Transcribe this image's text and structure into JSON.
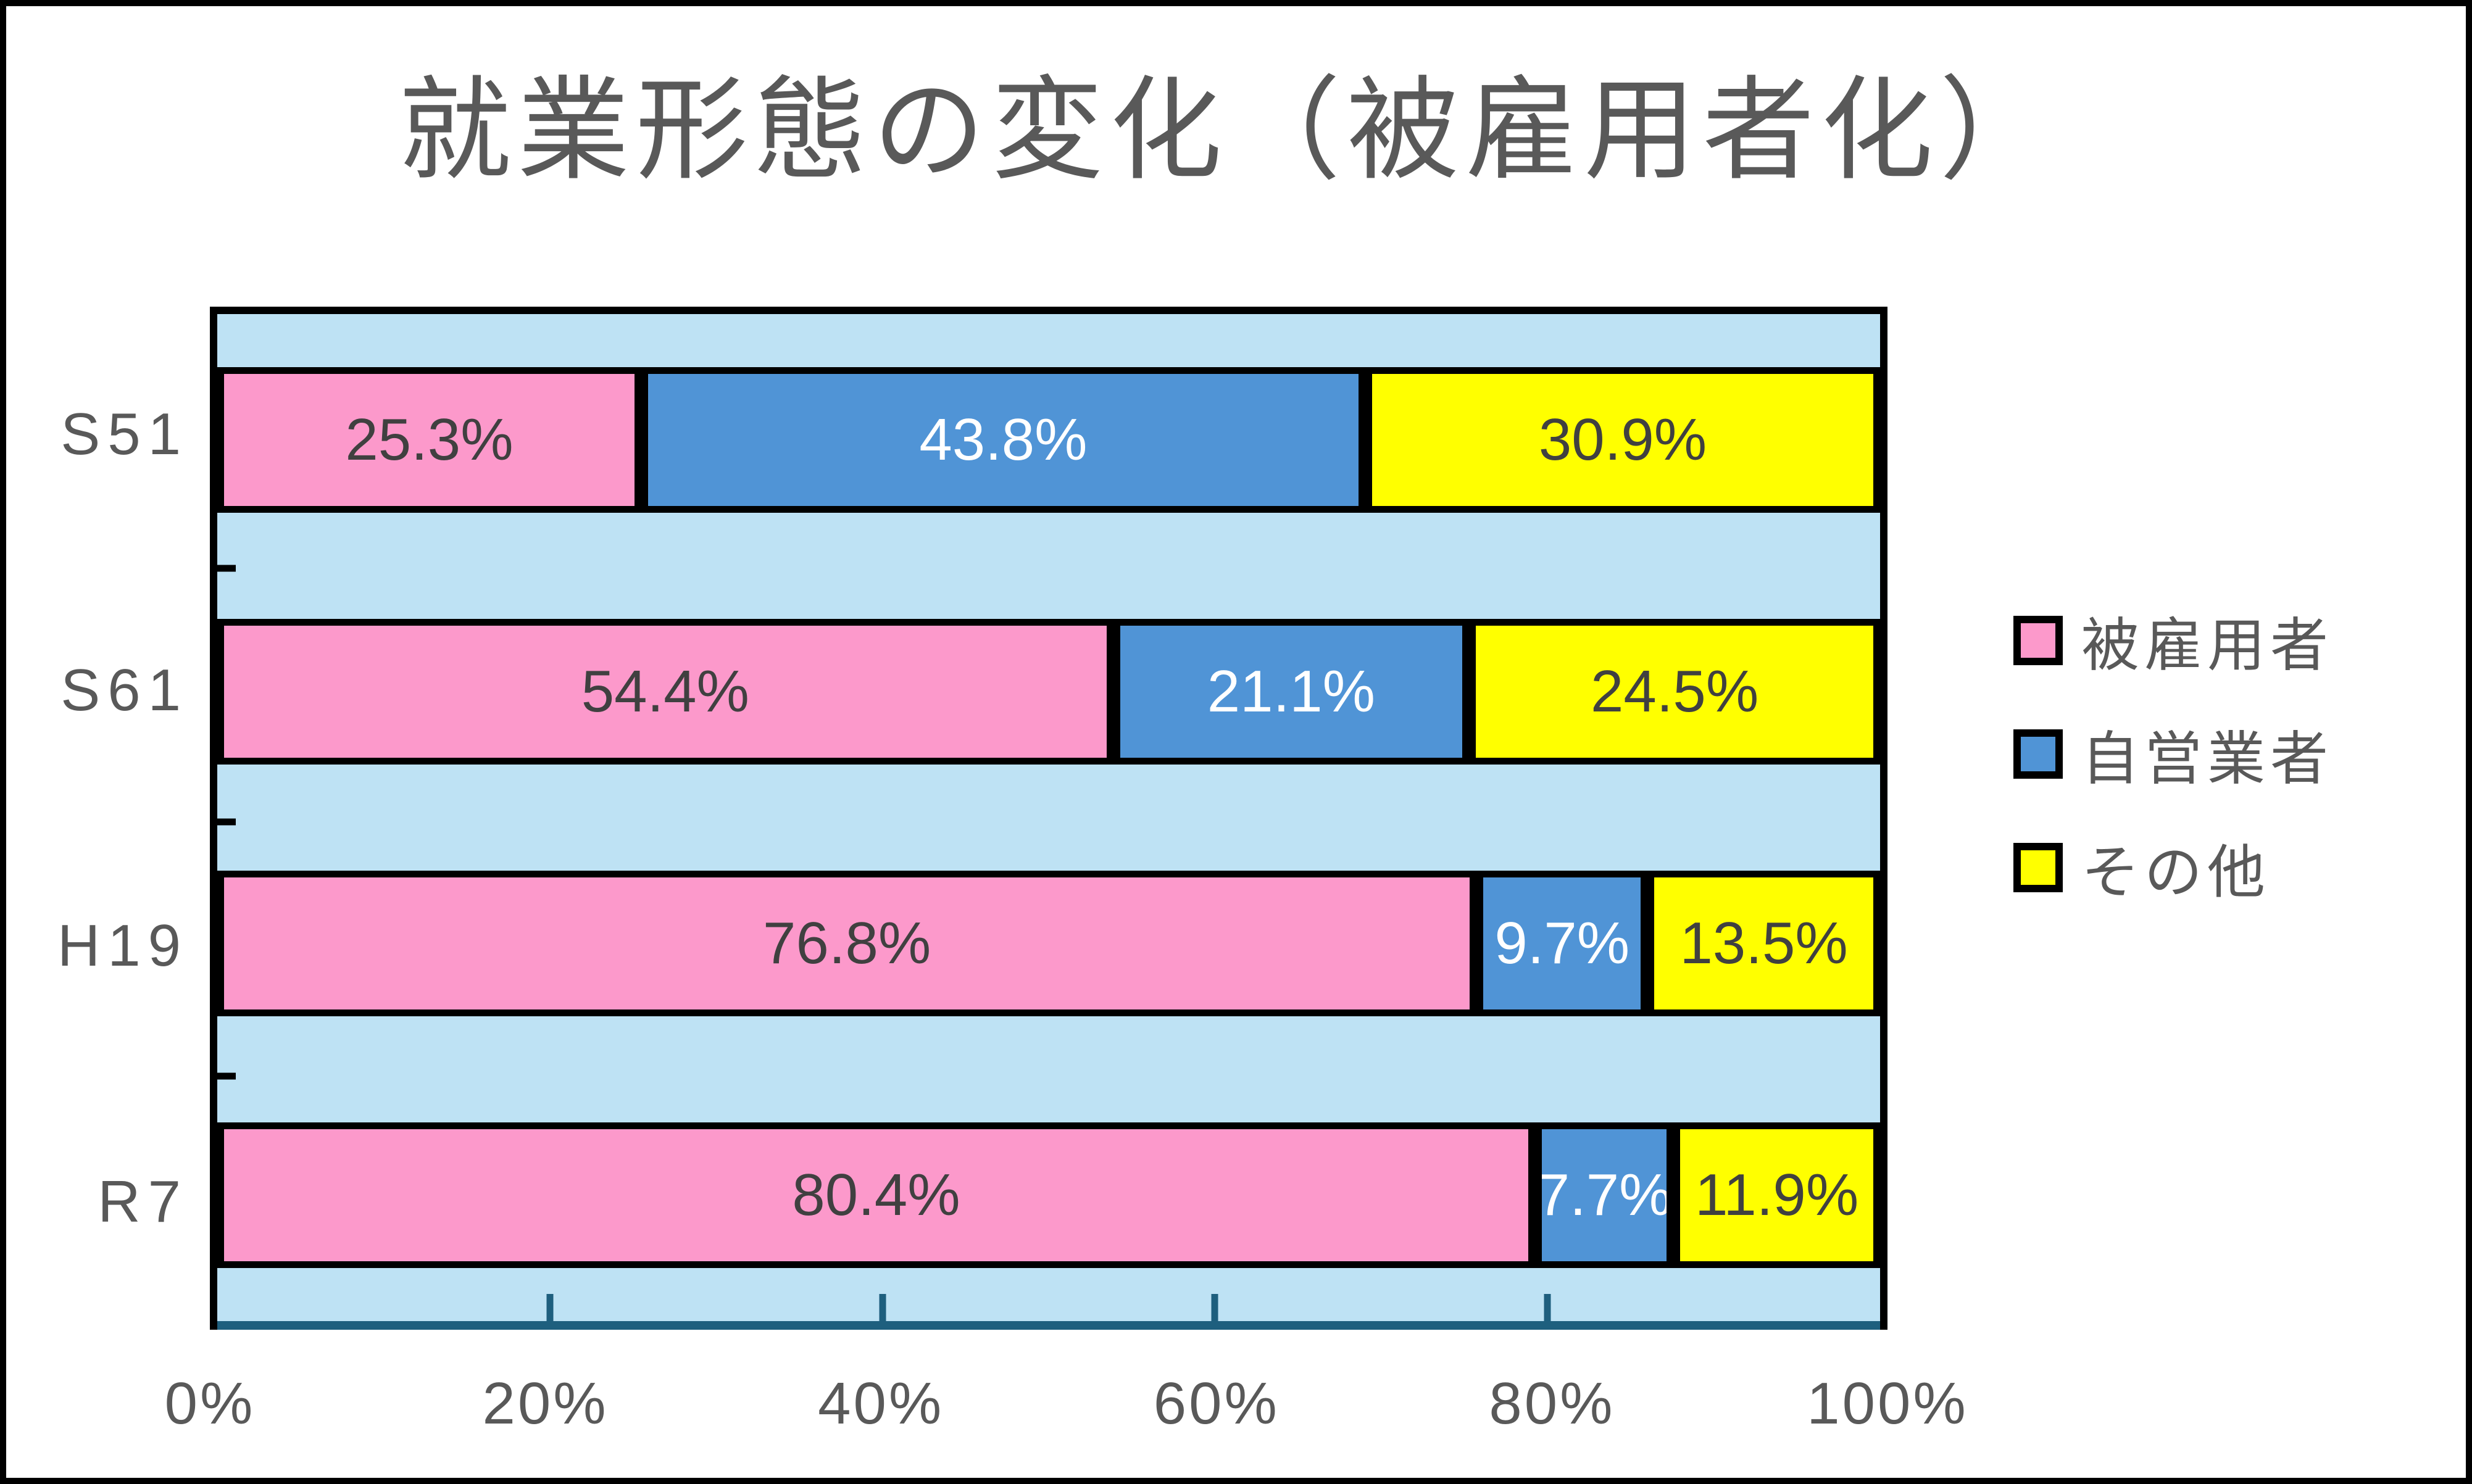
{
  "title": "就業形態の変化（被雇用者化）",
  "chart_data": {
    "type": "bar",
    "subtype": "stacked-horizontal",
    "title": "就業形態の変化（被雇用者化）",
    "categories": [
      "S51",
      "S61",
      "H19",
      "R7"
    ],
    "series": [
      {
        "name": "被雇用者",
        "color": "#FC99CB",
        "values": [
          25.3,
          54.4,
          76.8,
          80.4
        ]
      },
      {
        "name": "自営業者",
        "color": "#5094D6",
        "values": [
          43.8,
          21.1,
          9.7,
          7.7
        ]
      },
      {
        "name": "その他",
        "color": "#FFFF00",
        "values": [
          30.9,
          24.5,
          13.5,
          11.9
        ]
      }
    ],
    "data_labels": [
      [
        "25.3%",
        "43.8%",
        "30.9%"
      ],
      [
        "54.4%",
        "21.1%",
        "24.5%"
      ],
      [
        "76.8%",
        "9.7%",
        "13.5%"
      ],
      [
        "80.4%",
        "7.7%",
        "11.9%"
      ]
    ],
    "label_colors_per_series": [
      "#404040",
      "#FFFFFF",
      "#404040"
    ],
    "x_ticks": [
      "0%",
      "20%",
      "40%",
      "60%",
      "80%",
      "100%"
    ],
    "xlim": [
      0,
      100
    ],
    "grid": false,
    "legend_position": "right",
    "plot_background": "#BEE2F4",
    "axis_line_color": "#1E5F7E",
    "bar_border_color": "#000000",
    "text_color": "#595959"
  },
  "legend": {
    "items": [
      {
        "label": "被雇用者",
        "color": "#FC99CB"
      },
      {
        "label": "自営業者",
        "color": "#5094D6"
      },
      {
        "label": "その他",
        "color": "#FFFF00"
      }
    ]
  }
}
